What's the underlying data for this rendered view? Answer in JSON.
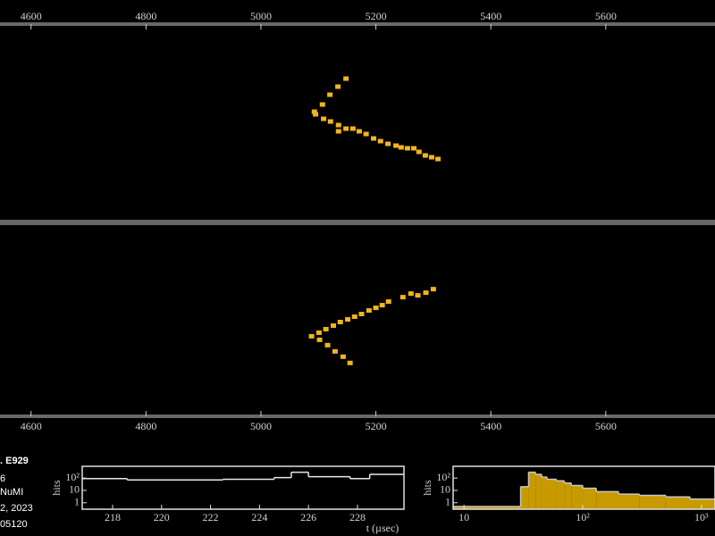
{
  "chart_data": [
    {
      "type": "scatter",
      "color": "#f2b51c",
      "xlim": [
        4546,
        5790
      ],
      "ylim": [
        0,
        220
      ],
      "xticks": [
        4600,
        4800,
        5000,
        5200,
        5400,
        5600
      ],
      "x": [
        5148,
        5134,
        5120,
        5107,
        5093,
        5095,
        5109,
        5121,
        5135,
        5135,
        5148,
        5160,
        5171,
        5183,
        5196,
        5208,
        5221,
        5235,
        5244,
        5255,
        5266,
        5275,
        5286,
        5297,
        5308
      ],
      "values": [
        160,
        151,
        142,
        131,
        123,
        120,
        115,
        112,
        108,
        101,
        104,
        104,
        101,
        98,
        93,
        90,
        87,
        85,
        83,
        82,
        82,
        78,
        74,
        72,
        70
      ]
    },
    {
      "type": "scatter",
      "color": "#f2b51c",
      "xlim": [
        4546,
        5790
      ],
      "ylim": [
        0,
        216
      ],
      "xticks": [
        4600,
        4800,
        5000,
        5200,
        5400,
        5600
      ],
      "x": [
        5155,
        5143,
        5129,
        5116,
        5102,
        5088,
        5101,
        5113,
        5126,
        5138,
        5151,
        5163,
        5175,
        5188,
        5200,
        5211,
        5222,
        5247,
        5261,
        5273,
        5287,
        5300
      ],
      "values": [
        60,
        67,
        73,
        80,
        86,
        90,
        94,
        98,
        102,
        106,
        109,
        112,
        115,
        119,
        122,
        125,
        129,
        134,
        138,
        136,
        139,
        143
      ]
    },
    {
      "type": "histogram",
      "color": "#e8e8e8",
      "y_label": "hits",
      "x_label": "t (µsec)",
      "ylog": true,
      "xlim": [
        216.76,
        229.9
      ],
      "ylim": [
        0.3,
        900
      ],
      "xticks": [
        218,
        220,
        222,
        224,
        226,
        228
      ],
      "yticks": [
        1,
        10,
        {
          "value": 100,
          "label": "10²"
        }
      ],
      "bins": [
        216.76,
        218.6,
        222.5,
        224.6,
        225.3,
        226,
        227.7,
        228.5,
        229.9
      ],
      "values": [
        90,
        70,
        80,
        110,
        300,
        130,
        90,
        200
      ]
    },
    {
      "type": "histogram",
      "color": "#c8c8c8",
      "fill_color": "#c79a00",
      "y_label": "hits",
      "xlog": true,
      "ylog": true,
      "xlim": [
        8.1,
        1300
      ],
      "ylim": [
        0.3,
        900
      ],
      "xticks": [
        10,
        {
          "value": 100,
          "label": "10²"
        },
        {
          "value": 1000,
          "label": "10³"
        }
      ],
      "yticks": [
        1,
        10,
        {
          "value": 100,
          "label": "10²"
        }
      ],
      "bins": [
        8.1,
        30,
        35,
        40,
        45,
        50,
        60,
        70,
        80,
        100,
        130,
        200,
        300,
        500,
        800,
        1300
      ],
      "values": [
        0.5,
        20,
        300,
        200,
        120,
        80,
        60,
        40,
        25,
        15,
        8,
        5,
        4,
        3,
        2
      ]
    }
  ],
  "info_lines": [
    ". E929",
    "6",
    "NuMI",
    "2, 2023",
    "05120"
  ]
}
